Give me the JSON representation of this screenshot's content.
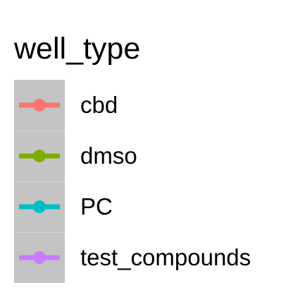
{
  "chart_data": {
    "type": "line",
    "legend": {
      "title": "well_type",
      "entries": [
        {
          "label": "cbd",
          "color": "#F8766D"
        },
        {
          "label": "dmso",
          "color": "#7CAE00"
        },
        {
          "label": "PC",
          "color": "#00BFC4"
        },
        {
          "label": "test_compounds",
          "color": "#C77CFF"
        }
      ],
      "key_background": "#C4C4C4",
      "glyph": "line-with-point"
    }
  }
}
